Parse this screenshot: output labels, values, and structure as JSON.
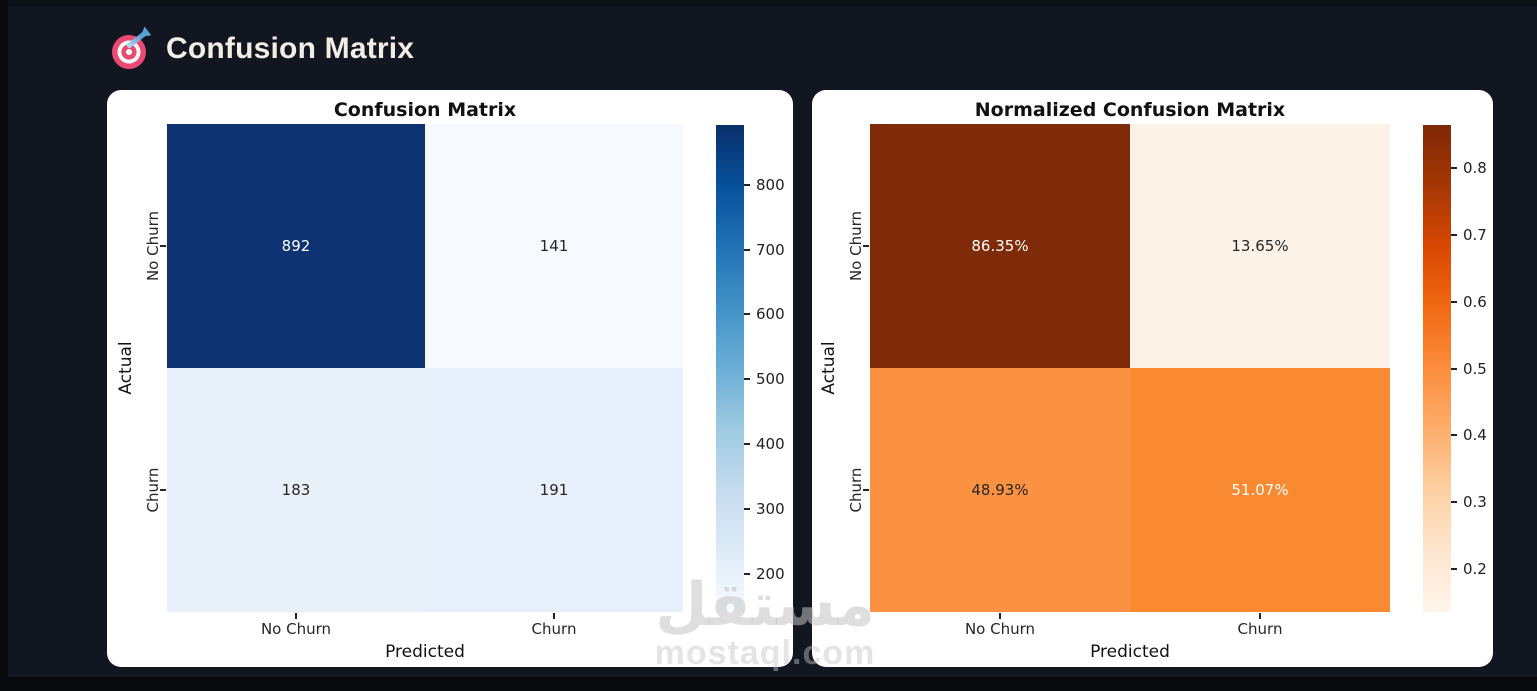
{
  "header": {
    "title": "Confusion Matrix"
  },
  "watermark": {
    "arabic": "مستقل",
    "latin": "mostaql.com"
  },
  "colors": {
    "page_background": "#121620",
    "panel_background": "#ffffff",
    "header_text": "#f2eee5",
    "target_icon_pink": "#ea4a72",
    "target_icon_blue": "#3f87c7"
  },
  "left_chart": {
    "title": "Confusion Matrix",
    "xlabel": "Predicted",
    "ylabel": "Actual",
    "xticks": [
      "No Churn",
      "Churn"
    ],
    "yticks": [
      "No Churn",
      "Churn"
    ],
    "cells": [
      {
        "label": "892",
        "bg": "#0d3372"
      },
      {
        "label": "141",
        "bg": "#f6fafe"
      },
      {
        "label": "183",
        "bg": "#e8f1fa"
      },
      {
        "label": "191",
        "bg": "#e6effa"
      }
    ],
    "colorbar": {
      "vmin": 141,
      "vmax": 892,
      "ticks": [
        {
          "v": 800,
          "label": "800"
        },
        {
          "v": 700,
          "label": "700"
        },
        {
          "v": 600,
          "label": "600"
        },
        {
          "v": 500,
          "label": "500"
        },
        {
          "v": 400,
          "label": "400"
        },
        {
          "v": 300,
          "label": "300"
        },
        {
          "v": 200,
          "label": "200"
        }
      ],
      "stops": [
        "#08306b",
        "#08519c",
        "#2171b5",
        "#4292c6",
        "#6baed6",
        "#9ecae1",
        "#c6dbef",
        "#deebf7",
        "#f7fbff"
      ]
    }
  },
  "right_chart": {
    "title": "Normalized Confusion Matrix",
    "xlabel": "Predicted",
    "ylabel": "Actual",
    "xticks": [
      "No Churn",
      "Churn"
    ],
    "yticks": [
      "No Churn",
      "Churn"
    ],
    "cells": [
      {
        "label": "86.35%",
        "bg": "#7f2a08"
      },
      {
        "label": "13.65%",
        "bg": "#fdf2e7"
      },
      {
        "label": "48.93%",
        "bg": "#fb9242"
      },
      {
        "label": "51.07%",
        "bg": "#f98a31"
      }
    ],
    "colorbar": {
      "vmin": 0.1365,
      "vmax": 0.8635,
      "ticks": [
        {
          "v": 0.8,
          "label": "0.8"
        },
        {
          "v": 0.7,
          "label": "0.7"
        },
        {
          "v": 0.6,
          "label": "0.6"
        },
        {
          "v": 0.5,
          "label": "0.5"
        },
        {
          "v": 0.4,
          "label": "0.4"
        },
        {
          "v": 0.3,
          "label": "0.3"
        },
        {
          "v": 0.2,
          "label": "0.2"
        }
      ],
      "stops": [
        "#7f2704",
        "#a63603",
        "#d94801",
        "#f16913",
        "#fd8d3c",
        "#fdae6b",
        "#fdd0a2",
        "#fee6ce",
        "#fff5eb"
      ]
    }
  },
  "chart_data": [
    {
      "type": "heatmap",
      "title": "Confusion Matrix",
      "xlabel": "Predicted",
      "ylabel": "Actual",
      "x_categories": [
        "No Churn",
        "Churn"
      ],
      "y_categories": [
        "No Churn",
        "Churn"
      ],
      "values": [
        [
          892,
          141
        ],
        [
          183,
          191
        ]
      ],
      "colormap": "Blues",
      "value_range": [
        141,
        892
      ],
      "colorbar_ticks": [
        200,
        300,
        400,
        500,
        600,
        700,
        800
      ],
      "legend_position": "right-colorbar",
      "grid": false
    },
    {
      "type": "heatmap",
      "title": "Normalized Confusion Matrix",
      "xlabel": "Predicted",
      "ylabel": "Actual",
      "x_categories": [
        "No Churn",
        "Churn"
      ],
      "y_categories": [
        "No Churn",
        "Churn"
      ],
      "values": [
        [
          86.35,
          13.65
        ],
        [
          48.93,
          51.07
        ]
      ],
      "unit": "%",
      "colormap": "Oranges",
      "value_range": [
        0.1365,
        0.8635
      ],
      "colorbar_ticks": [
        0.2,
        0.3,
        0.4,
        0.5,
        0.6,
        0.7,
        0.8
      ],
      "legend_position": "right-colorbar",
      "grid": false
    }
  ]
}
